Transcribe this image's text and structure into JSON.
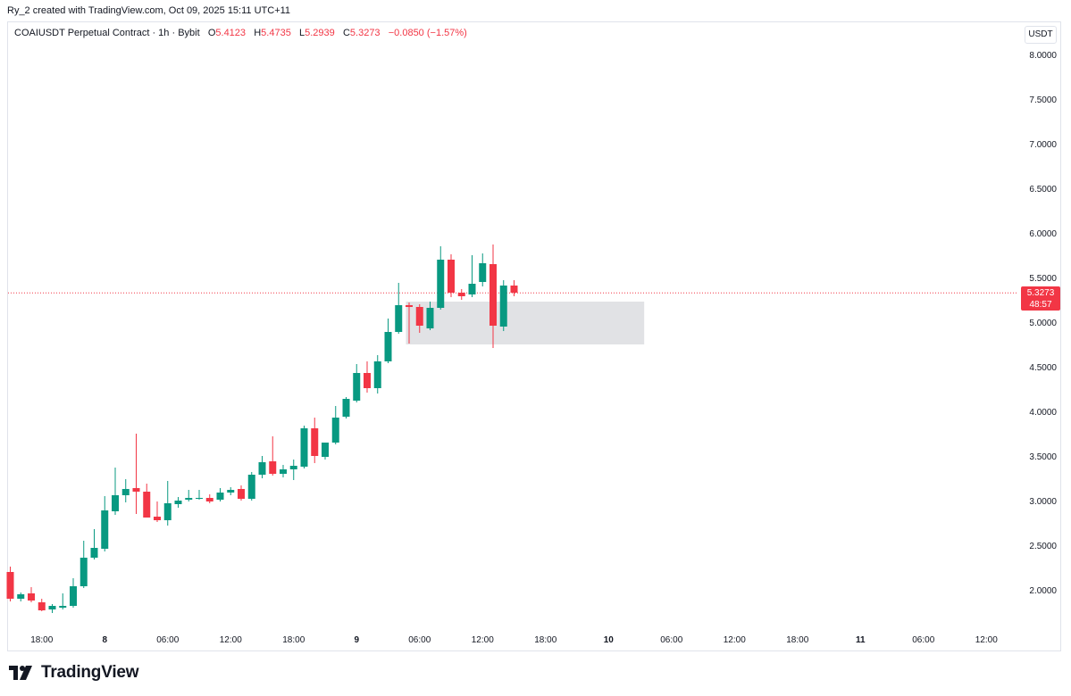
{
  "header": {
    "attribution": "Ry_2 created with TradingView.com, Oct 09, 2025 15:11 UTC+11"
  },
  "legend": {
    "symbol": "COAIUSDT Perpetual Contract · 1h · Bybit",
    "open_label": "O",
    "open": "5.4123",
    "high_label": "H",
    "high": "5.4735",
    "low_label": "L",
    "low": "5.2939",
    "close_label": "C",
    "close": "5.3273",
    "change": "−0.0850 (−1.57%)"
  },
  "axis": {
    "unit": "USDT"
  },
  "price_badge": {
    "price": "5.3273",
    "countdown": "48:57"
  },
  "branding": {
    "logo_text": "TradingView"
  },
  "colors": {
    "up": "#089981",
    "down": "#f23645",
    "zone": "#dcdde0",
    "grid_border": "#e0e3eb",
    "last_price_line": "#f23645"
  },
  "chart_data": {
    "type": "candlestick",
    "y_axis": {
      "min": 1.55,
      "max": 8.3,
      "ticks": [
        "8.0000",
        "7.5000",
        "7.0000",
        "6.5000",
        "6.0000",
        "5.5000",
        "5.0000",
        "4.5000",
        "4.0000",
        "3.5000",
        "3.0000",
        "2.5000",
        "2.0000"
      ]
    },
    "x_axis": {
      "ticks": [
        {
          "label": "18:00",
          "i": 3
        },
        {
          "label": "8",
          "i": 9
        },
        {
          "label": "06:00",
          "i": 15
        },
        {
          "label": "12:00",
          "i": 21
        },
        {
          "label": "18:00",
          "i": 27
        },
        {
          "label": "9",
          "i": 33
        },
        {
          "label": "06:00",
          "i": 39
        },
        {
          "label": "12:00",
          "i": 45
        },
        {
          "label": "18:00",
          "i": 51
        },
        {
          "label": "10",
          "i": 57
        },
        {
          "label": "06:00",
          "i": 63
        },
        {
          "label": "12:00",
          "i": 69
        },
        {
          "label": "18:00",
          "i": 75
        },
        {
          "label": "11",
          "i": 81
        },
        {
          "label": "06:00",
          "i": 87
        },
        {
          "label": "12:00",
          "i": 93
        }
      ]
    },
    "last_price": 5.3273,
    "zone": {
      "from_index": 37.7,
      "to_index": 60.4,
      "high": 5.23,
      "low": 4.75
    },
    "candles": [
      {
        "o": 2.2,
        "h": 2.26,
        "l": 1.87,
        "c": 1.9
      },
      {
        "o": 1.9,
        "h": 1.97,
        "l": 1.87,
        "c": 1.95
      },
      {
        "o": 1.96,
        "h": 2.03,
        "l": 1.86,
        "c": 1.88
      },
      {
        "o": 1.86,
        "h": 1.9,
        "l": 1.76,
        "c": 1.77
      },
      {
        "o": 1.78,
        "h": 1.84,
        "l": 1.74,
        "c": 1.82
      },
      {
        "o": 1.8,
        "h": 1.96,
        "l": 1.78,
        "c": 1.82
      },
      {
        "o": 1.82,
        "h": 2.13,
        "l": 1.8,
        "c": 2.04
      },
      {
        "o": 2.04,
        "h": 2.55,
        "l": 2.02,
        "c": 2.36
      },
      {
        "o": 2.36,
        "h": 2.68,
        "l": 2.34,
        "c": 2.47
      },
      {
        "o": 2.46,
        "h": 3.05,
        "l": 2.43,
        "c": 2.89
      },
      {
        "o": 2.88,
        "h": 3.37,
        "l": 2.84,
        "c": 3.06
      },
      {
        "o": 3.06,
        "h": 3.24,
        "l": 2.98,
        "c": 3.13
      },
      {
        "o": 3.14,
        "h": 3.75,
        "l": 2.85,
        "c": 3.1
      },
      {
        "o": 3.1,
        "h": 3.19,
        "l": 2.82,
        "c": 2.81
      },
      {
        "o": 2.82,
        "h": 2.99,
        "l": 2.76,
        "c": 2.78
      },
      {
        "o": 2.78,
        "h": 3.22,
        "l": 2.72,
        "c": 2.97
      },
      {
        "o": 2.96,
        "h": 3.04,
        "l": 2.92,
        "c": 3.0
      },
      {
        "o": 3.01,
        "h": 3.12,
        "l": 2.99,
        "c": 3.03
      },
      {
        "o": 3.03,
        "h": 3.12,
        "l": 3.01,
        "c": 3.03
      },
      {
        "o": 3.03,
        "h": 3.07,
        "l": 2.97,
        "c": 2.99
      },
      {
        "o": 3.01,
        "h": 3.14,
        "l": 2.99,
        "c": 3.09
      },
      {
        "o": 3.09,
        "h": 3.15,
        "l": 3.06,
        "c": 3.12
      },
      {
        "o": 3.13,
        "h": 3.17,
        "l": 3.0,
        "c": 3.02
      },
      {
        "o": 3.02,
        "h": 3.32,
        "l": 3.0,
        "c": 3.29
      },
      {
        "o": 3.29,
        "h": 3.5,
        "l": 3.25,
        "c": 3.43
      },
      {
        "o": 3.44,
        "h": 3.72,
        "l": 3.28,
        "c": 3.3
      },
      {
        "o": 3.3,
        "h": 3.4,
        "l": 3.26,
        "c": 3.35
      },
      {
        "o": 3.35,
        "h": 3.46,
        "l": 3.23,
        "c": 3.39
      },
      {
        "o": 3.38,
        "h": 3.84,
        "l": 3.36,
        "c": 3.81
      },
      {
        "o": 3.81,
        "h": 3.93,
        "l": 3.42,
        "c": 3.5
      },
      {
        "o": 3.49,
        "h": 3.63,
        "l": 3.46,
        "c": 3.65
      },
      {
        "o": 3.65,
        "h": 4.06,
        "l": 3.63,
        "c": 3.93
      },
      {
        "o": 3.94,
        "h": 4.16,
        "l": 3.92,
        "c": 4.14
      },
      {
        "o": 4.12,
        "h": 4.53,
        "l": 4.1,
        "c": 4.43
      },
      {
        "o": 4.43,
        "h": 4.56,
        "l": 4.21,
        "c": 4.26
      },
      {
        "o": 4.26,
        "h": 4.63,
        "l": 4.2,
        "c": 4.56
      },
      {
        "o": 4.56,
        "h": 5.04,
        "l": 4.54,
        "c": 4.89
      },
      {
        "o": 4.89,
        "h": 5.44,
        "l": 4.87,
        "c": 5.19
      },
      {
        "o": 5.19,
        "h": 5.22,
        "l": 4.76,
        "c": 5.17
      },
      {
        "o": 5.17,
        "h": 5.2,
        "l": 4.88,
        "c": 4.96
      },
      {
        "o": 4.93,
        "h": 5.23,
        "l": 4.91,
        "c": 5.16
      },
      {
        "o": 5.16,
        "h": 5.85,
        "l": 5.14,
        "c": 5.7
      },
      {
        "o": 5.7,
        "h": 5.76,
        "l": 5.28,
        "c": 5.33
      },
      {
        "o": 5.33,
        "h": 5.37,
        "l": 5.25,
        "c": 5.29
      },
      {
        "o": 5.31,
        "h": 5.75,
        "l": 5.28,
        "c": 5.43
      },
      {
        "o": 5.45,
        "h": 5.77,
        "l": 5.4,
        "c": 5.66
      },
      {
        "o": 5.65,
        "h": 5.87,
        "l": 4.71,
        "c": 4.96
      },
      {
        "o": 4.95,
        "h": 5.47,
        "l": 4.9,
        "c": 5.41
      },
      {
        "o": 5.41,
        "h": 5.47,
        "l": 5.29,
        "c": 5.33
      }
    ]
  }
}
